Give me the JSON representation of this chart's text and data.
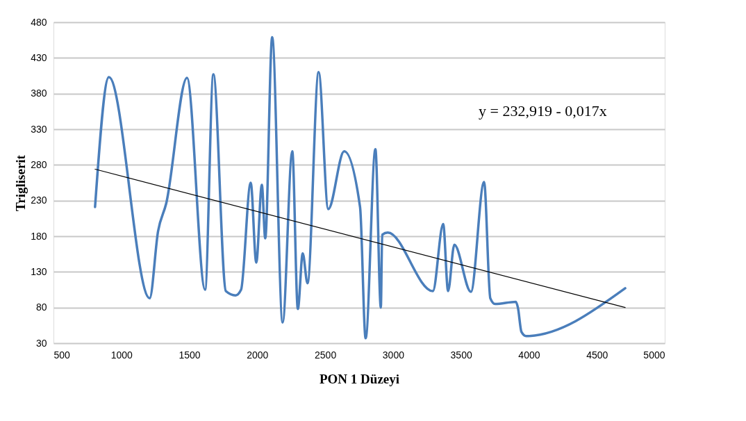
{
  "chart_data": {
    "type": "line",
    "xlabel": "PON 1 Düzeyi",
    "ylabel": "Trigliserit",
    "xlim": [
      500,
      5000
    ],
    "xticks": [
      500,
      1000,
      1500,
      2000,
      2500,
      3000,
      3500,
      4000,
      4500,
      5000
    ],
    "ylim": [
      30,
      480
    ],
    "yticks": [
      30,
      80,
      130,
      180,
      230,
      280,
      330,
      380,
      430,
      480
    ],
    "grid": "y",
    "marker": "none",
    "line_style": "solid",
    "annotations": [
      "y = 232,919 - 0,017x"
    ],
    "series": [
      {
        "color": "#4a7ebb",
        "x": [
          806,
          908,
          1208,
          1270,
          1330,
          1483,
          1616,
          1677,
          1769,
          1840,
          1881,
          1952,
          1993,
          2034,
          2059,
          2110,
          2187,
          2258,
          2299,
          2335,
          2370,
          2452,
          2523,
          2640,
          2757,
          2798,
          2870,
          2910,
          2920,
          2961,
          3293,
          3369,
          3405,
          3451,
          3573,
          3670,
          3716,
          3751,
          3904,
          3919,
          3945,
          3980,
          4709
        ],
        "values": [
          221,
          403,
          93,
          187,
          226,
          402,
          105,
          407,
          103,
          97,
          105,
          255,
          143,
          252,
          177,
          459,
          59,
          299,
          78,
          156,
          114,
          410,
          218,
          299,
          221,
          37,
          302,
          80,
          182,
          185,
          103,
          197,
          103,
          168,
          102,
          256,
          93,
          85,
          88,
          80,
          46,
          40,
          107
        ]
      },
      {
        "type": "line",
        "color": "#000000",
        "x": [
          806,
          4709
        ],
        "values": [
          274,
          80
        ]
      }
    ]
  }
}
